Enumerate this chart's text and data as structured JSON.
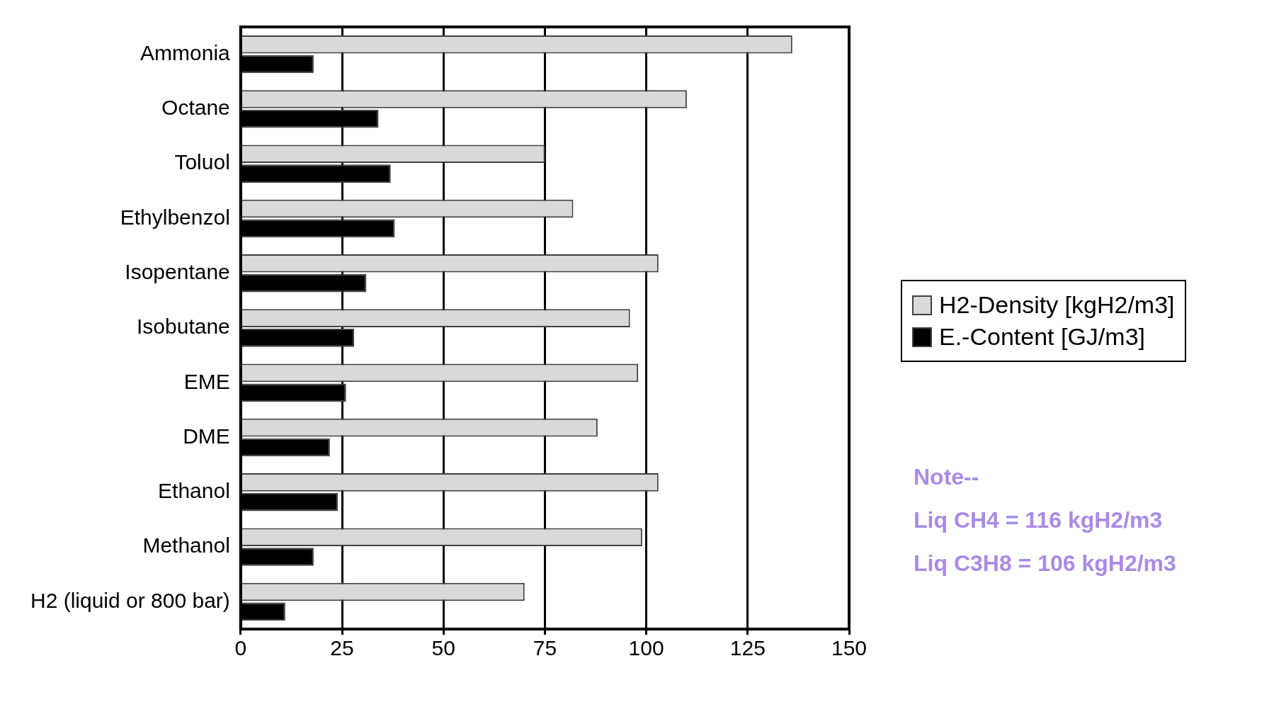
{
  "chart_data": {
    "type": "bar",
    "orientation": "horizontal",
    "categories": [
      "Ammonia",
      "Octane",
      "Toluol",
      "Ethylbenzol",
      "Isopentane",
      "Isobutane",
      "EME",
      "DME",
      "Ethanol",
      "Methanol",
      "H2 (liquid or 800 bar)"
    ],
    "series": [
      {
        "name": "H2-Density [kgH2/m3]",
        "color": "#d9d9d9",
        "values": [
          136,
          110,
          75,
          82,
          103,
          96,
          98,
          88,
          103,
          99,
          70
        ]
      },
      {
        "name": "E.-Content [GJ/m3]",
        "color": "#000000",
        "values": [
          18,
          34,
          37,
          38,
          31,
          28,
          26,
          22,
          24,
          18,
          11
        ]
      }
    ],
    "xlim": [
      0,
      150
    ],
    "xticks": [
      0,
      25,
      50,
      75,
      100,
      125,
      150
    ],
    "grid": "x",
    "legend": "right",
    "annotations": [
      "Note--",
      "Liq CH4 = 116 kgH2/m3",
      "Liq C3H8 = 106 kgH2/m3"
    ]
  }
}
